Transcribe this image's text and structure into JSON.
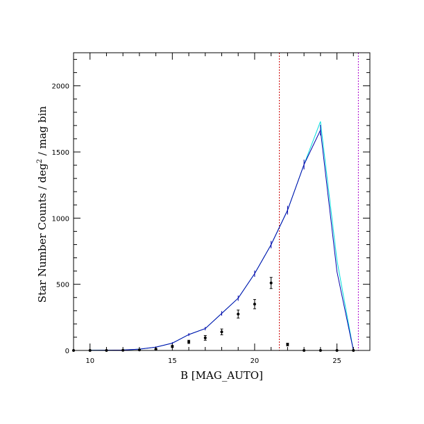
{
  "chart_data": {
    "type": "line",
    "xlabel": "B [MAG_AUTO]",
    "ylabel_main": "Star Number Counts / deg",
    "ylabel_sup": "2",
    "ylabel_tail": " / mag bin",
    "xlim": [
      9,
      27
    ],
    "ylim": [
      0,
      2250
    ],
    "x_major_ticks": [
      10,
      15,
      20,
      25
    ],
    "y_major_ticks": [
      0,
      500,
      1000,
      1500,
      2000
    ],
    "x_minor_step": 1,
    "y_minor_step": 100,
    "grid": false,
    "series": [
      {
        "color": "#00dede",
        "x": [
          10,
          11,
          12,
          13,
          14,
          15,
          16,
          17,
          18,
          19,
          20,
          21,
          22,
          23,
          24,
          25,
          26
        ],
        "y": [
          1,
          2,
          3,
          10,
          25,
          55,
          120,
          165,
          280,
          395,
          580,
          800,
          1060,
          1405,
          1730,
          680,
          0
        ]
      },
      {
        "color": "#0000aa",
        "x": [
          10,
          11,
          12,
          13,
          14,
          15,
          16,
          17,
          18,
          19,
          20,
          21,
          22,
          23,
          24,
          25,
          26
        ],
        "y": [
          1,
          2,
          3,
          10,
          25,
          55,
          120,
          165,
          280,
          395,
          580,
          800,
          1060,
          1405,
          1665,
          595,
          0
        ],
        "yerr": [
          1,
          1,
          2,
          3,
          5,
          7,
          11,
          13,
          17,
          20,
          24,
          28,
          33,
          37,
          40,
          0,
          0
        ]
      },
      {
        "color": "#000000",
        "marker": "point",
        "x": [
          9,
          10,
          11,
          12,
          13,
          14,
          15,
          16,
          17,
          18,
          19,
          20,
          21,
          22,
          23,
          24,
          25,
          26
        ],
        "y": [
          0,
          0,
          0,
          1,
          4,
          10,
          30,
          65,
          95,
          140,
          275,
          350,
          510,
          45,
          0,
          0,
          0,
          0
        ],
        "yerr": [
          0,
          0,
          0,
          1,
          2,
          3,
          8,
          12,
          18,
          22,
          30,
          35,
          42,
          10,
          0,
          0,
          0,
          0
        ]
      }
    ],
    "vlines": [
      {
        "x": 21.5,
        "color": "#cc0000",
        "style": "dotted"
      },
      {
        "x": 26.3,
        "color": "#aa00cc",
        "style": "dotted"
      }
    ]
  }
}
